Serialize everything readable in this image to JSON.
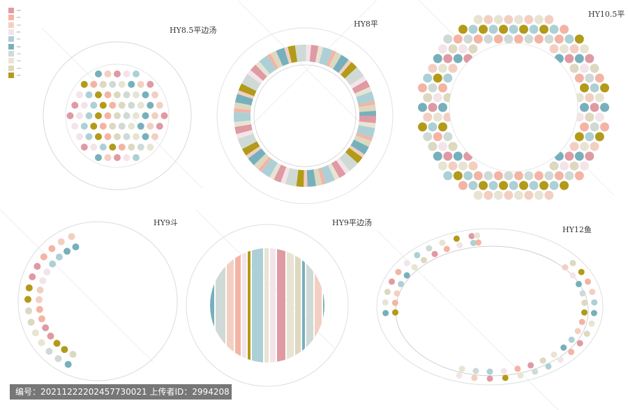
{
  "palette": {
    "pink": "#df9aa4",
    "salmon": "#f4b4a4",
    "peach": "#f3cfc2",
    "blush": "#f3e4ea",
    "teal": "#76b0bc",
    "light_teal": "#acd0d6",
    "gray_green": "#cfdad6",
    "beige": "#e8e4d3",
    "sand": "#ddd8c0",
    "olive": "#b39a18"
  },
  "legend": {
    "items": [
      {
        "color": "#df9aa4",
        "label": "880"
      },
      {
        "color": "#f4b4a4",
        "label": "6E1"
      },
      {
        "color": "#f3cfc2",
        "label": "4d3"
      },
      {
        "color": "#f3e4ea",
        "label": "8f6"
      },
      {
        "color": "#acd0d6",
        "label": "9dc"
      },
      {
        "color": "#76b0bc",
        "label": "6bb"
      },
      {
        "color": "#cfdad6",
        "label": "cd1"
      },
      {
        "color": "#e8e4d3",
        "label": "7ad"
      },
      {
        "color": "#ddd8c0",
        "label": "ad0"
      },
      {
        "color": "#b39a18",
        "label": "a87"
      }
    ]
  },
  "plates": {
    "hy85": {
      "title": "HY8.5平边汤"
    },
    "hy8": {
      "title": "HY8平"
    },
    "hy105": {
      "title": "HY10.5平"
    },
    "hy9dou": {
      "title": "HY9斗"
    },
    "hy9": {
      "title": "HY9平边汤"
    },
    "hy12": {
      "title": "HY12鱼"
    }
  },
  "footer": {
    "text": "编号：20211222202457730021 上传者ID：2994208"
  }
}
